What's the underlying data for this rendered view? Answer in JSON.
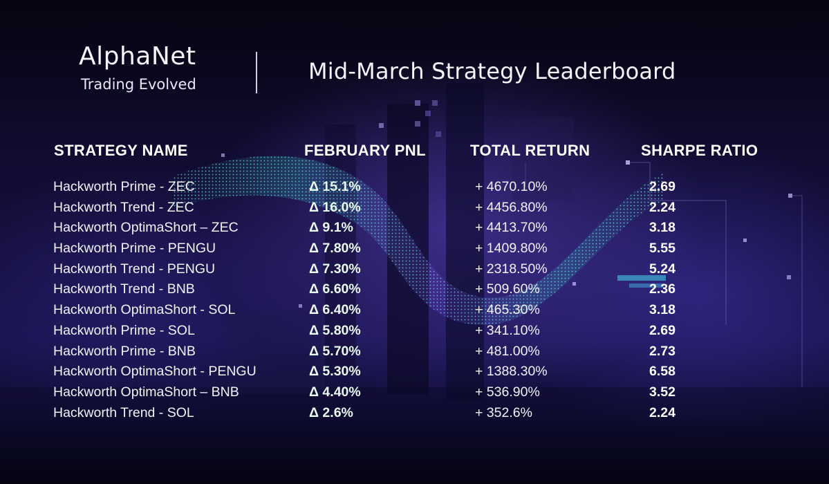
{
  "brand": {
    "logo": "AlphaNet",
    "tagline": "Trading Evolved"
  },
  "title": "Mid-March Strategy Leaderboard",
  "columns": [
    "STRATEGY NAME",
    "FEBRUARY PNL",
    "TOTAL RETURN",
    "SHARPE RATIO"
  ],
  "rows": [
    {
      "name": "Hackworth Prime - ZEC",
      "pnl": "Δ 15.1%",
      "total_return": "+ 4670.10%",
      "sharpe": "2.69"
    },
    {
      "name": "Hackworth Trend - ZEC",
      "pnl": "Δ 16.0%",
      "total_return": "+ 4456.80%",
      "sharpe": "2.24"
    },
    {
      "name": "Hackworth OptimaShort – ZEC",
      "pnl": "Δ 9.1%",
      "total_return": "+ 4413.70%",
      "sharpe": "3.18"
    },
    {
      "name": "Hackworth Prime - PENGU",
      "pnl": "Δ 7.80%",
      "total_return": "+ 1409.80%",
      "sharpe": "5.55"
    },
    {
      "name": "Hackworth Trend - PENGU",
      "pnl": "Δ 7.30%",
      "total_return": "+ 2318.50%",
      "sharpe": "5.24"
    },
    {
      "name": "Hackworth Trend - BNB",
      "pnl": "Δ 6.60%",
      "total_return": "+ 509.60%",
      "sharpe": "2.36"
    },
    {
      "name": "Hackworth OptimaShort - SOL",
      "pnl": "Δ 6.40%",
      "total_return": "+ 465.30%",
      "sharpe": "3.18"
    },
    {
      "name": "Hackworth Prime - SOL",
      "pnl": "Δ 5.80%",
      "total_return": "+ 341.10%",
      "sharpe": "2.69"
    },
    {
      "name": "Hackworth Prime - BNB",
      "pnl": "Δ 5.70%",
      "total_return": "+ 481.00%",
      "sharpe": "2.73"
    },
    {
      "name": "Hackworth OptimaShort - PENGU",
      "pnl": "Δ 5.30%",
      "total_return": "+ 1388.30%",
      "sharpe": "6.58"
    },
    {
      "name": "Hackworth OptimaShort – BNB",
      "pnl": "Δ 4.40%",
      "total_return": "+ 536.90%",
      "sharpe": "3.52"
    },
    {
      "name": "Hackworth Trend - SOL",
      "pnl": "Δ 2.6%",
      "total_return": "+ 352.6%",
      "sharpe": "2.24"
    }
  ],
  "colors": {
    "background": "#0a0820",
    "accent_teal": "#2fe0d0",
    "accent_purple": "#8a4fff",
    "text": "#ffffff"
  }
}
